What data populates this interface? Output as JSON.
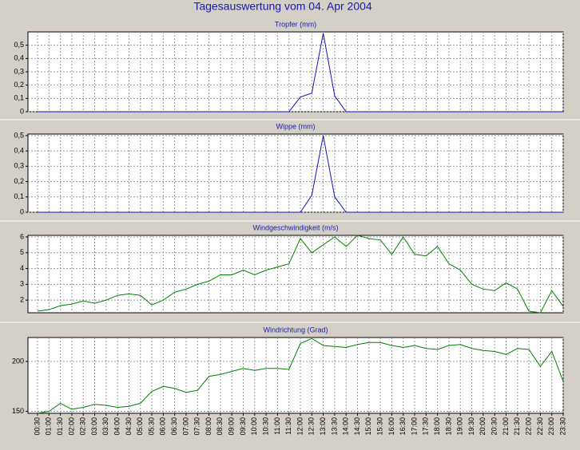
{
  "title": "Tagesauswertung vom 04. Apr 2004",
  "chart_data": [
    {
      "type": "line",
      "title": "Tropfer (mm)",
      "series": [
        {
          "color": "#1010c0",
          "values": [
            0,
            0,
            0,
            0,
            0,
            0,
            0,
            0,
            0,
            0,
            0,
            0,
            0,
            0,
            0,
            0,
            0,
            0,
            0,
            0,
            0,
            0,
            0,
            0.11,
            0.14,
            0.59,
            0.12,
            0,
            0,
            0,
            0,
            0,
            0,
            0,
            0,
            0,
            0,
            0,
            0,
            0,
            0,
            0,
            0,
            0,
            0,
            0,
            0
          ]
        }
      ],
      "ylim": [
        0,
        0.6
      ],
      "yticks": [
        0,
        {
          "value": 0.1,
          "label": "0,1"
        },
        {
          "value": 0.2,
          "label": "0,2"
        },
        {
          "value": 0.3,
          "label": "0,3"
        },
        {
          "value": 0.4,
          "label": "0,4"
        },
        {
          "value": 0.5,
          "label": "0,5"
        }
      ],
      "grid": true
    },
    {
      "type": "line",
      "title": "Wippe (mm)",
      "series": [
        {
          "color": "#1010c0",
          "values": [
            0,
            0,
            0,
            0,
            0,
            0,
            0,
            0,
            0,
            0,
            0,
            0,
            0,
            0,
            0,
            0,
            0,
            0,
            0,
            0,
            0,
            0,
            0,
            0,
            0.11,
            0.5,
            0.1,
            0,
            0,
            0,
            0,
            0,
            0,
            0,
            0,
            0,
            0,
            0,
            0,
            0,
            0,
            0,
            0,
            0,
            0,
            0,
            0
          ]
        }
      ],
      "ylim": [
        0,
        0.51
      ],
      "yticks": [
        0,
        {
          "value": 0.1,
          "label": "0,1"
        },
        {
          "value": 0.2,
          "label": "0,2"
        },
        {
          "value": 0.3,
          "label": "0,3"
        },
        {
          "value": 0.4,
          "label": "0,4"
        },
        {
          "value": 0.5,
          "label": "0,5"
        }
      ],
      "grid": true
    },
    {
      "type": "line",
      "title": "Windgeschwindigkeit (m/s)",
      "series": [
        {
          "color": "#008000",
          "values": [
            1.3,
            1.4,
            1.65,
            1.75,
            1.95,
            1.8,
            2.0,
            2.3,
            2.4,
            2.3,
            1.7,
            2.0,
            2.5,
            2.7,
            3.0,
            3.2,
            3.6,
            3.6,
            3.9,
            3.6,
            3.9,
            4.1,
            4.3,
            5.9,
            5.0,
            5.5,
            6.0,
            5.4,
            6.1,
            5.9,
            5.8,
            4.9,
            6.0,
            4.9,
            4.8,
            5.4,
            4.3,
            3.9,
            3.0,
            2.7,
            2.6,
            3.1,
            2.7,
            1.3,
            1.2,
            2.6,
            1.6
          ]
        }
      ],
      "ylim": [
        1.2,
        6.1
      ],
      "yticks": [
        2,
        3,
        4,
        5,
        6
      ],
      "grid": true
    },
    {
      "type": "line",
      "title": "Windrichtung (Grad)",
      "categories": [
        "00:30",
        "01:00",
        "01:30",
        "02:00",
        "02:30",
        "03:00",
        "03:30",
        "04:00",
        "04:30",
        "05:00",
        "05:30",
        "06:00",
        "06:30",
        "07:00",
        "07:30",
        "08:00",
        "08:30",
        "09:00",
        "09:30",
        "10:00",
        "10:30",
        "11:00",
        "11:30",
        "12:00",
        "12:30",
        "13:00",
        "13:30",
        "14:00",
        "14:30",
        "15:00",
        "15:30",
        "16:00",
        "16:30",
        "17:00",
        "17:30",
        "18:00",
        "18:30",
        "19:00",
        "19:30",
        "20:00",
        "20:30",
        "21:00",
        "21:30",
        "22:00",
        "22:30",
        "23:00",
        "23:30"
      ],
      "series": [
        {
          "color": "#008000",
          "values": [
            148,
            150,
            158,
            152,
            154,
            157,
            156,
            154,
            155,
            158,
            170,
            175,
            173,
            169,
            171,
            185,
            187,
            190,
            193,
            191,
            193,
            193,
            192,
            218,
            223,
            216,
            215,
            214,
            217,
            219,
            219,
            216,
            214,
            216,
            213,
            212,
            216,
            217,
            213,
            211,
            210,
            207,
            213,
            212,
            195,
            210,
            180
          ]
        }
      ],
      "ylim": [
        148,
        224
      ],
      "yticks": [
        150,
        200
      ],
      "grid": true
    }
  ]
}
